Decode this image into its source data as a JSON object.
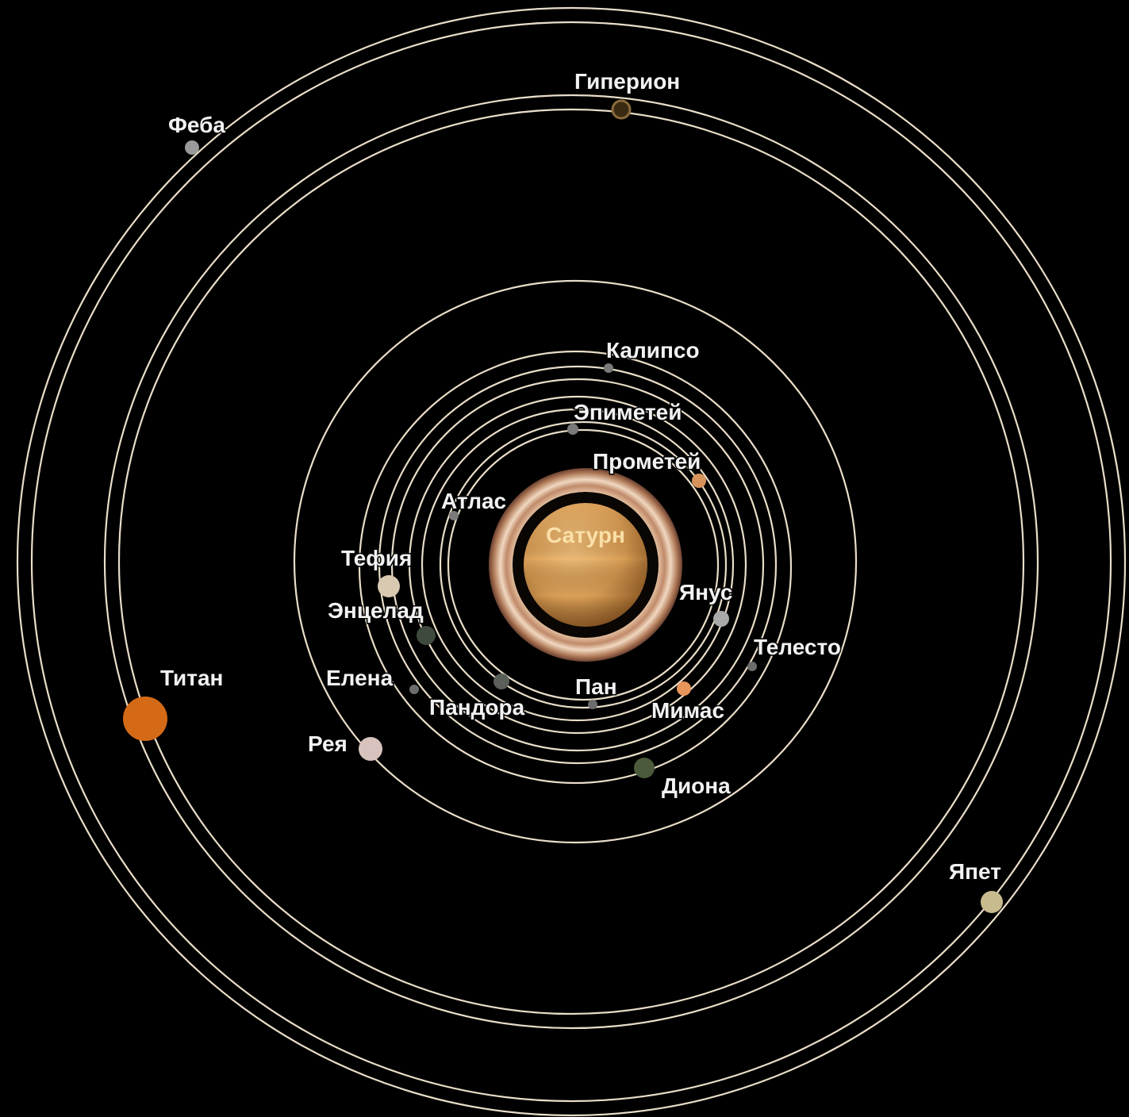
{
  "planet": {
    "name": "Сатурн",
    "color": "#e0a860"
  },
  "moons": [
    {
      "key": "phoebe",
      "name": "Феба",
      "color": "#9a9a9a"
    },
    {
      "key": "hyperion",
      "name": "Гиперион",
      "color": "#8a6a3a"
    },
    {
      "key": "calypso",
      "name": "Калипсо",
      "color": "#7a7a7a"
    },
    {
      "key": "epimetheus",
      "name": "Эпиметей",
      "color": "#7a7a7a"
    },
    {
      "key": "prometheus",
      "name": "Прометей",
      "color": "#d8935a"
    },
    {
      "key": "atlas",
      "name": "Атлас",
      "color": "#7a7a7a"
    },
    {
      "key": "tethys",
      "name": "Тефия",
      "color": "#d9c9b0"
    },
    {
      "key": "enceladus",
      "name": "Энцелад",
      "color": "#3e4a3e"
    },
    {
      "key": "janus",
      "name": "Янус",
      "color": "#a9a9a9"
    },
    {
      "key": "telesto",
      "name": "Телесто",
      "color": "#6c6c6c"
    },
    {
      "key": "titan",
      "name": "Титан",
      "color": "#d56a16"
    },
    {
      "key": "helene",
      "name": "Елена",
      "color": "#6c6c6c"
    },
    {
      "key": "pan",
      "name": "Пан",
      "color": "#6c6c6c"
    },
    {
      "key": "pandora",
      "name": "Пандора",
      "color": "#5a5f5a"
    },
    {
      "key": "mimas",
      "name": "Мимас",
      "color": "#e7955a"
    },
    {
      "key": "rhea",
      "name": "Рея",
      "color": "#d8c2bd"
    },
    {
      "key": "dione",
      "name": "Диона",
      "color": "#4a5a3a"
    },
    {
      "key": "iapetus",
      "name": "Япет",
      "color": "#c8bb8e"
    }
  ],
  "orbit_color": "#e9ddc7"
}
